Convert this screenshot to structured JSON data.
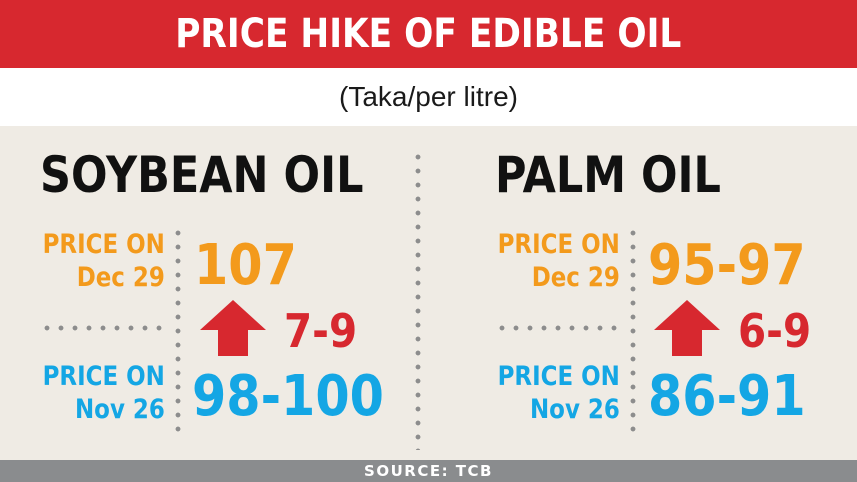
{
  "header": {
    "title": "PRICE HIKE OF EDIBLE OIL"
  },
  "subtitle": "(Taka/per litre)",
  "colors": {
    "accent_red": "#d7282f",
    "orange": "#f39a1c",
    "blue": "#14a6e4",
    "panel_bg": "#efebe4",
    "footer_bg": "#8a8c8e"
  },
  "oils": [
    {
      "name": "SOYBEAN OIL",
      "price_dec_label_1": "PRICE ON",
      "price_dec_label_2": "Dec 29",
      "price_dec": "107",
      "price_nov_label_1": "PRICE ON",
      "price_nov_label_2": "Nov 26",
      "price_nov": "98-100",
      "increase": "7-9",
      "arrow_icon": "up-arrow-icon"
    },
    {
      "name": "PALM OIL",
      "price_dec_label_1": "PRICE ON",
      "price_dec_label_2": "Dec 29",
      "price_dec": "95-97",
      "price_nov_label_1": "PRICE ON",
      "price_nov_label_2": "Nov 26",
      "price_nov": "86-91",
      "increase": "6-9",
      "arrow_icon": "up-arrow-icon"
    }
  ],
  "footer": {
    "source": "SOURCE: TCB"
  }
}
